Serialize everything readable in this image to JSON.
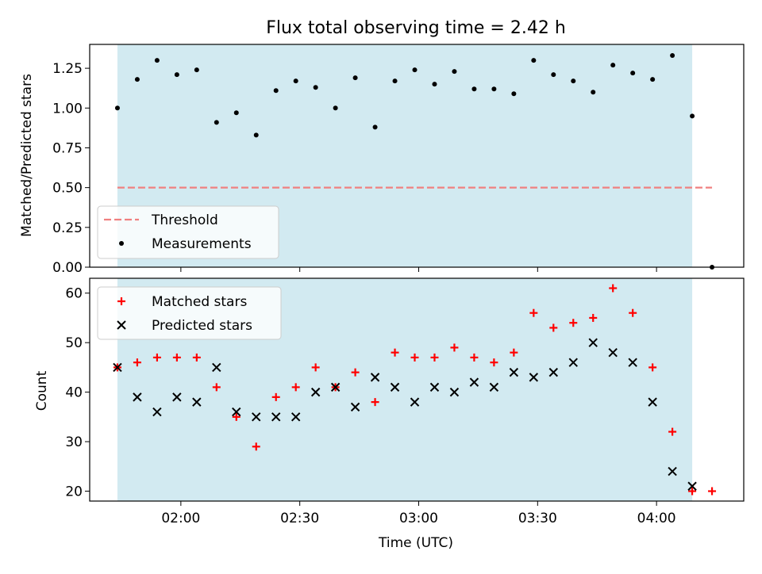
{
  "chart_data": [
    {
      "type": "scatter",
      "title": "Flux total observing time = 2.42 h",
      "xlabel": "",
      "ylabel": "Matched/Predicted stars",
      "ylim": [
        0,
        1.4
      ],
      "y_ticks": [
        0.0,
        0.25,
        0.5,
        0.75,
        1.0,
        1.25
      ],
      "y_tick_labels": [
        "0.00",
        "0.25",
        "0.50",
        "0.75",
        "1.00",
        "1.25"
      ],
      "x_tick_labels_shown": false,
      "shaded_region": {
        "start": "01:44",
        "end": "04:09",
        "color": "#add8e6"
      },
      "threshold": {
        "name": "Threshold",
        "value": 0.5,
        "x_start": "01:44",
        "x_end": "04:14",
        "color": "#f08080"
      },
      "series": [
        {
          "name": "Measurements",
          "color": "#000000",
          "x": [
            "01:44",
            "01:49",
            "01:54",
            "01:59",
            "02:04",
            "02:09",
            "02:14",
            "02:19",
            "02:24",
            "02:29",
            "02:34",
            "02:39",
            "02:44",
            "02:49",
            "02:54",
            "02:59",
            "03:04",
            "03:09",
            "03:14",
            "03:19",
            "03:24",
            "03:29",
            "03:34",
            "03:39",
            "03:44",
            "03:49",
            "03:54",
            "03:59",
            "04:04",
            "04:09",
            "04:14"
          ],
          "y": [
            1.0,
            1.18,
            1.3,
            1.21,
            1.24,
            0.91,
            0.97,
            0.83,
            1.11,
            1.17,
            1.13,
            1.0,
            1.19,
            0.88,
            1.17,
            1.24,
            1.15,
            1.23,
            1.12,
            1.12,
            1.09,
            1.3,
            1.21,
            1.17,
            1.1,
            1.27,
            1.22,
            1.18,
            1.33,
            0.95,
            0.0
          ]
        }
      ],
      "legend": {
        "position": "lower-left",
        "entries": [
          "Threshold",
          "Measurements"
        ]
      },
      "grid": false
    },
    {
      "type": "scatter",
      "title": "",
      "xlabel": "Time (UTC)",
      "ylabel": "Count",
      "ylim": [
        18,
        63
      ],
      "y_ticks": [
        20,
        30,
        40,
        50,
        60
      ],
      "y_tick_labels": [
        "20",
        "30",
        "40",
        "50",
        "60"
      ],
      "xlim": [
        "01:37",
        "04:22"
      ],
      "x_ticks": [
        "02:00",
        "02:30",
        "03:00",
        "03:30",
        "04:00"
      ],
      "x_tick_labels": [
        "02:00",
        "02:30",
        "03:00",
        "03:30",
        "04:00"
      ],
      "shaded_region": {
        "start": "01:44",
        "end": "04:09",
        "color": "#add8e6"
      },
      "series": [
        {
          "name": "Matched stars",
          "marker": "plus",
          "color": "#ff0000",
          "x": [
            "01:44",
            "01:49",
            "01:54",
            "01:59",
            "02:04",
            "02:09",
            "02:14",
            "02:19",
            "02:24",
            "02:29",
            "02:34",
            "02:39",
            "02:44",
            "02:49",
            "02:54",
            "02:59",
            "03:04",
            "03:09",
            "03:14",
            "03:19",
            "03:24",
            "03:29",
            "03:34",
            "03:39",
            "03:44",
            "03:49",
            "03:54",
            "03:59",
            "04:04",
            "04:09",
            "04:14"
          ],
          "y": [
            45,
            46,
            47,
            47,
            47,
            41,
            35,
            29,
            39,
            41,
            45,
            41,
            44,
            38,
            48,
            47,
            47,
            49,
            47,
            46,
            48,
            56,
            53,
            54,
            55,
            61,
            56,
            45,
            32,
            20,
            20
          ]
        },
        {
          "name": "Predicted stars",
          "marker": "x",
          "color": "#000000",
          "x": [
            "01:44",
            "01:49",
            "01:54",
            "01:59",
            "02:04",
            "02:09",
            "02:14",
            "02:19",
            "02:24",
            "02:29",
            "02:34",
            "02:39",
            "02:44",
            "02:49",
            "02:54",
            "02:59",
            "03:04",
            "03:09",
            "03:14",
            "03:19",
            "03:24",
            "03:29",
            "03:34",
            "03:39",
            "03:44",
            "03:49",
            "03:54",
            "03:59",
            "04:04",
            "04:09"
          ],
          "y": [
            45,
            39,
            36,
            39,
            38,
            45,
            36,
            35,
            35,
            35,
            40,
            41,
            37,
            43,
            41,
            38,
            41,
            40,
            42,
            41,
            44,
            43,
            44,
            46,
            50,
            48,
            46,
            38,
            24,
            21
          ]
        }
      ],
      "legend": {
        "position": "upper-left",
        "entries": [
          "Matched stars",
          "Predicted stars"
        ]
      },
      "grid": false
    }
  ]
}
